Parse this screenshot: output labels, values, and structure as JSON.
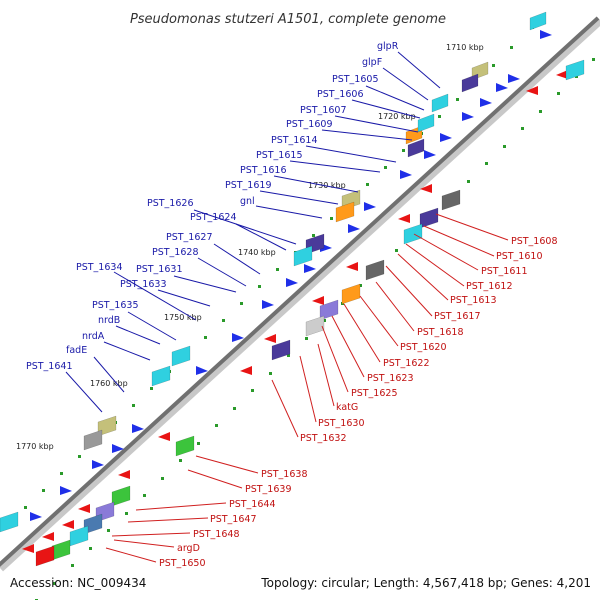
{
  "title": "Pseudomonas stutzeri A1501, complete genome",
  "accession": "Accession: NC_009434",
  "topology": "Topology: circular; Length: 4,567,418 bp; Genes: 4,201",
  "ticks": [
    "1710 kbp",
    "1720 kbp",
    "1730 kbp",
    "1740 kbp",
    "1750 kbp",
    "1760 kbp",
    "1770 kbp"
  ],
  "top_labels": [
    "glpR",
    "glpF",
    "PST_1605",
    "PST_1606",
    "PST_1607",
    "PST_1609",
    "PST_1614",
    "PST_1615",
    "PST_1616",
    "PST_1619",
    "gnl",
    "PST_1626",
    "PST_1624",
    "PST_1627",
    "PST_1628",
    "PST_1634",
    "PST_1631",
    "PST_1633",
    "PST_1635",
    "nrdB",
    "nrdA",
    "fadE",
    "PST_1641"
  ],
  "bottom_labels": [
    "PST_1608",
    "PST_1610",
    "PST_1611",
    "PST_1612",
    "PST_1613",
    "PST_1617",
    "PST_1618",
    "PST_1620",
    "PST_1622",
    "PST_1623",
    "PST_1625",
    "katG",
    "PST_1630",
    "PST_1632",
    "PST_1638",
    "PST_1639",
    "PST_1644",
    "PST_1647",
    "PST_1648",
    "argD",
    "PST_1650"
  ],
  "colors": {
    "forward": "#1f2fe8",
    "reverse": "#e81414",
    "cyan": "#2fd0e0",
    "purple": "#4a3a9a",
    "olive": "#c4c07a",
    "green": "#3cc43c",
    "orange": "#ff9a1a",
    "lavender": "#8a7ad8",
    "backbone": "#666666"
  }
}
